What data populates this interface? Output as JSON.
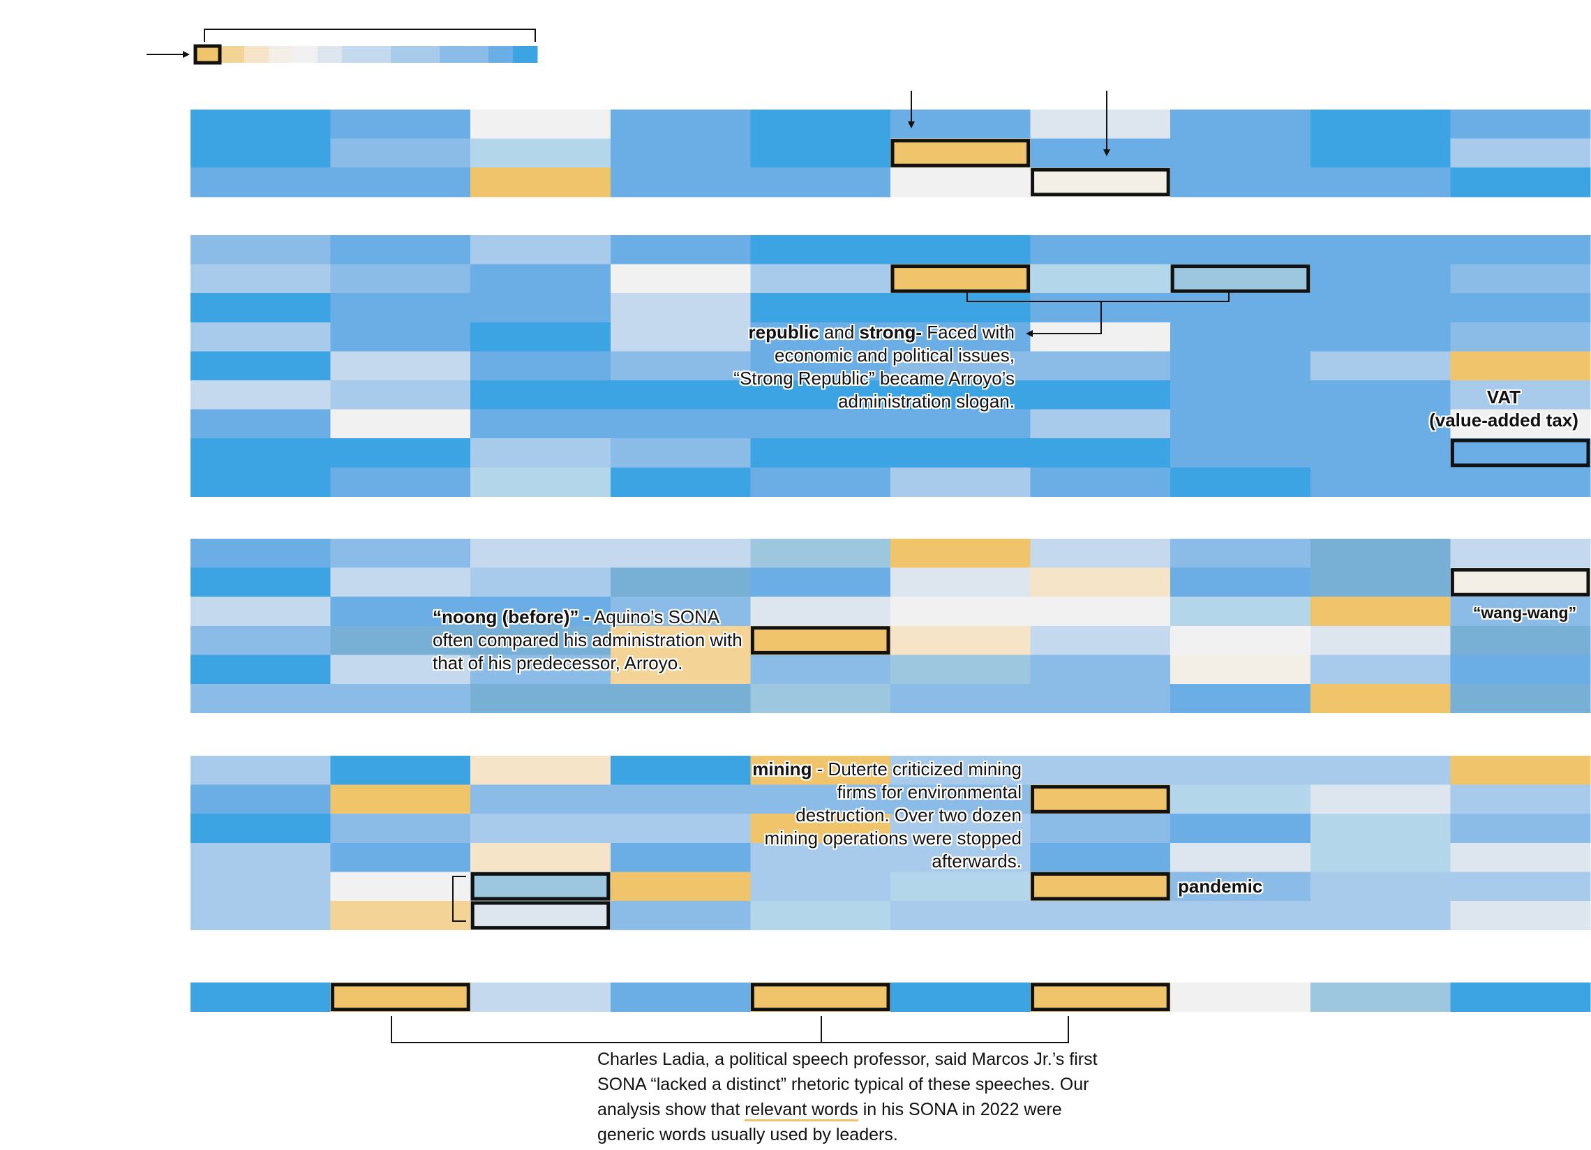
{
  "chart_data": {
    "type": "heatmap",
    "columns": 10,
    "legend": {
      "steps": 14,
      "highlight_step": 0
    },
    "palette": {
      "0": "#f0c46a",
      "1": "#f3d396",
      "2": "#f5e4c8",
      "3": "#f4efe6",
      "4": "#f1f1f1",
      "5": "#dde6ee",
      "6": "#c4d8ee",
      "7": "#a8cbeb",
      "8": "#8bbce8",
      "9": "#6aaee5",
      "10": "#3da4e4",
      "11": "#b3d6ea",
      "12": "#9cc7de",
      "13": "#78afd4"
    },
    "groups": [
      {
        "rows": [
          [
            10,
            9,
            4,
            9,
            10,
            9,
            5,
            9,
            10,
            9
          ],
          [
            10,
            8,
            11,
            9,
            10,
            0,
            9,
            9,
            10,
            7
          ],
          [
            9,
            9,
            0,
            9,
            9,
            4,
            3,
            9,
            9,
            10
          ]
        ]
      },
      {
        "rows": [
          [
            8,
            9,
            7,
            9,
            10,
            10,
            9,
            9,
            9,
            9
          ],
          [
            7,
            8,
            9,
            4,
            7,
            0,
            11,
            12,
            9,
            8
          ],
          [
            10,
            9,
            9,
            6,
            10,
            10,
            9,
            9,
            9,
            9
          ],
          [
            7,
            9,
            10,
            6,
            9,
            9,
            4,
            9,
            9,
            8
          ],
          [
            10,
            6,
            9,
            8,
            9,
            8,
            8,
            9,
            7,
            0
          ],
          [
            6,
            7,
            10,
            10,
            10,
            10,
            10,
            9,
            9,
            7
          ],
          [
            9,
            4,
            9,
            9,
            9,
            9,
            7,
            9,
            9,
            4
          ],
          [
            10,
            10,
            7,
            8,
            10,
            10,
            10,
            9,
            9,
            9
          ],
          [
            10,
            9,
            11,
            10,
            9,
            7,
            9,
            10,
            9,
            9
          ]
        ]
      },
      {
        "rows": [
          [
            9,
            8,
            6,
            6,
            12,
            0,
            6,
            8,
            13,
            6
          ],
          [
            10,
            6,
            7,
            13,
            9,
            5,
            2,
            9,
            13,
            3
          ],
          [
            6,
            9,
            9,
            8,
            5,
            4,
            4,
            11,
            0,
            8
          ],
          [
            8,
            13,
            13,
            1,
            0,
            2,
            6,
            4,
            5,
            13
          ],
          [
            10,
            6,
            8,
            1,
            8,
            12,
            8,
            3,
            7,
            9
          ],
          [
            8,
            8,
            13,
            13,
            12,
            8,
            8,
            9,
            0,
            13
          ]
        ]
      },
      {
        "rows": [
          [
            7,
            10,
            2,
            10,
            0,
            7,
            7,
            7,
            7,
            0
          ],
          [
            9,
            0,
            8,
            8,
            8,
            8,
            0,
            11,
            5,
            7
          ],
          [
            10,
            8,
            7,
            7,
            0,
            7,
            8,
            9,
            11,
            8
          ],
          [
            7,
            9,
            2,
            9,
            7,
            7,
            9,
            5,
            11,
            5
          ],
          [
            7,
            4,
            12,
            0,
            7,
            11,
            0,
            8,
            7,
            7
          ],
          [
            7,
            1,
            5,
            8,
            11,
            7,
            7,
            7,
            7,
            5
          ]
        ]
      },
      {
        "rows": [
          [
            10,
            0,
            6,
            9,
            0,
            10,
            0,
            4,
            12,
            10
          ]
        ]
      }
    ],
    "highlights": [
      {
        "group": 0,
        "row": 1,
        "col": 5
      },
      {
        "group": 0,
        "row": 2,
        "col": 6
      },
      {
        "group": 1,
        "row": 1,
        "col": 5
      },
      {
        "group": 1,
        "row": 1,
        "col": 7
      },
      {
        "group": 1,
        "row": 7,
        "col": 9
      },
      {
        "group": 2,
        "row": 1,
        "col": 9
      },
      {
        "group": 2,
        "row": 3,
        "col": 4
      },
      {
        "group": 3,
        "row": 1,
        "col": 6
      },
      {
        "group": 3,
        "row": 4,
        "col": 6
      },
      {
        "group": 3,
        "row": 4,
        "col": 2
      },
      {
        "group": 3,
        "row": 5,
        "col": 2
      },
      {
        "group": 4,
        "row": 0,
        "col": 1
      },
      {
        "group": 4,
        "row": 0,
        "col": 4
      },
      {
        "group": 4,
        "row": 0,
        "col": 6
      }
    ]
  },
  "annotations": {
    "republic": {
      "bold1": "republic",
      "text1": " and ",
      "bold2": "strong-",
      "text2": " Faced with economic and political issues, “Strong Republic” became Arroyo’s administration slogan."
    },
    "vat": {
      "line1": "VAT",
      "line2": "(value-added tax)"
    },
    "noong": {
      "bold": "“noong (before)” -",
      "text": " Aquino’s SONA often compared his administration with that of his predecessor, Arroyo."
    },
    "wangwang": {
      "bold": "“wang-wang”"
    },
    "mining": {
      "bold": "mining",
      "text": " - Duterte criticized mining firms for environmental destruction. Over two dozen mining operations were stopped afterwards."
    },
    "pandemic": {
      "bold": "pandemic"
    },
    "caption": {
      "text1": "Charles Ladia, a political speech professor, said Marcos Jr.’s first SONA “lacked a distinct” rhetoric typical of these speeches. Our analysis show that ",
      "underlined": "relevant words",
      "text2": " in his SONA in 2022 were generic words usually used by leaders."
    }
  }
}
